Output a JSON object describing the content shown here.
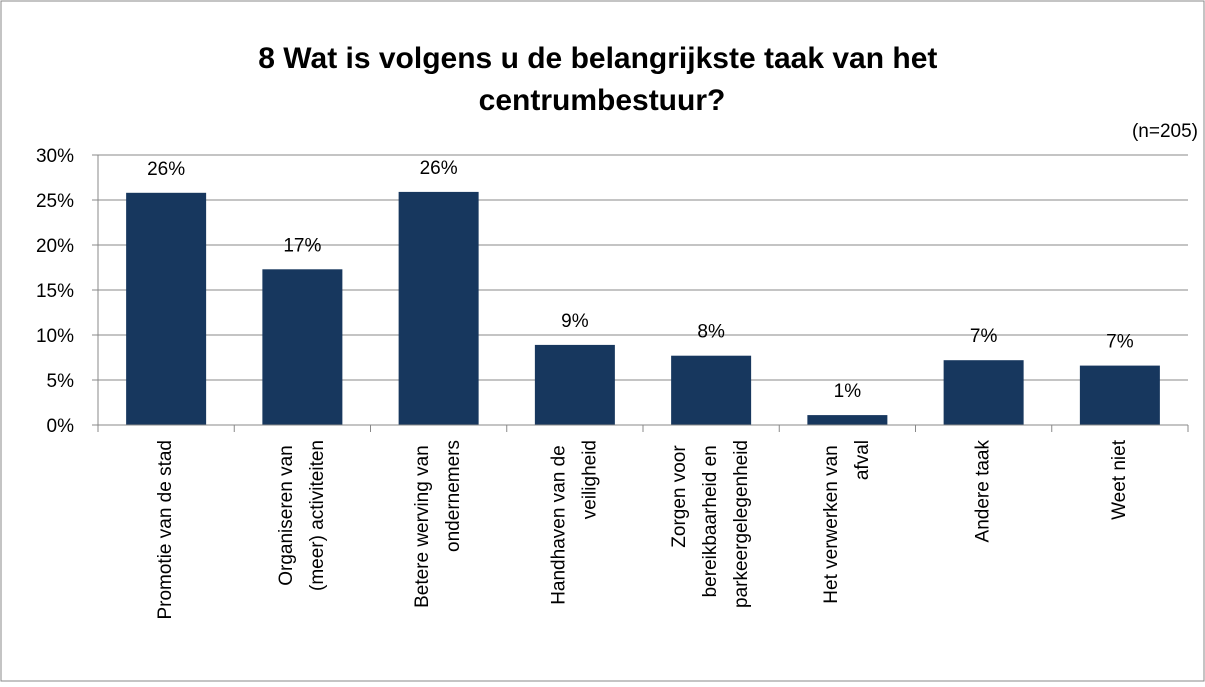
{
  "chart_data": {
    "type": "bar",
    "title": "8 Wat is volgens u de belangrijkste taak van het centrumbestuur?",
    "annotation": "(n=205)",
    "categories": [
      "Promotie van de stad",
      "Organiseren van (meer) activiteiten",
      "Betere werving van ondernemers",
      "Handhaven van de veiligheid",
      "Zorgen voor bereikbaarheid en parkeergelegenheid",
      "Het verwerken van afval",
      "Andere taak",
      "Weet niet"
    ],
    "values": [
      25.8,
      17.3,
      25.9,
      8.9,
      7.7,
      1.1,
      7.2,
      6.6
    ],
    "value_labels": [
      "26%",
      "17%",
      "26%",
      "9%",
      "8%",
      "1%",
      "7%",
      "7%"
    ],
    "color": "#17375e",
    "ylim": [
      0,
      30
    ],
    "yticks": [
      {
        "value": 0,
        "label": "0%"
      },
      {
        "value": 5,
        "label": "5%"
      },
      {
        "value": 10,
        "label": "10%"
      },
      {
        "value": 15,
        "label": "15%"
      },
      {
        "value": 20,
        "label": "20%"
      },
      {
        "value": 25,
        "label": "25%"
      },
      {
        "value": 30,
        "label": "30%"
      }
    ],
    "grid": true
  }
}
